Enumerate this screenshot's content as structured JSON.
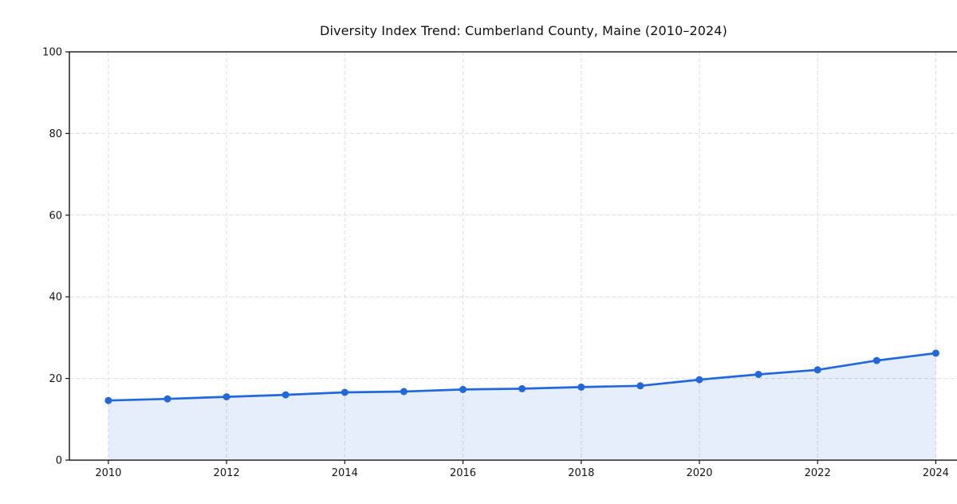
{
  "chart_data": {
    "type": "line",
    "title": "Diversity Index Trend: Cumberland County, Maine (2010–2024)",
    "xlabel": "",
    "ylabel": "",
    "x": [
      2010,
      2011,
      2012,
      2013,
      2014,
      2015,
      2016,
      2017,
      2018,
      2019,
      2020,
      2021,
      2022,
      2023,
      2024
    ],
    "series": [
      {
        "name": "Diversity Index",
        "values": [
          14.6,
          15.0,
          15.5,
          16.0,
          16.6,
          16.8,
          17.3,
          17.5,
          17.9,
          18.2,
          19.7,
          21.0,
          22.1,
          24.4,
          26.2
        ]
      }
    ],
    "xticks": [
      2010,
      2012,
      2014,
      2016,
      2018,
      2020,
      2022,
      2024
    ],
    "yticks": [
      0,
      20,
      40,
      60,
      80,
      100
    ],
    "xlim": [
      2009.34,
      2024.71
    ],
    "ylim": [
      0,
      100
    ],
    "grid": true,
    "grid_style": "dashed",
    "legend": "none",
    "area_fill": true,
    "colors": {
      "line": "#2268dd",
      "marker": "#2268dd",
      "fill": "rgba(34,104,221,0.11)",
      "grid": "#dedede",
      "axis": "#141414",
      "tick_label": "#141414",
      "background": "#ffffff"
    }
  }
}
